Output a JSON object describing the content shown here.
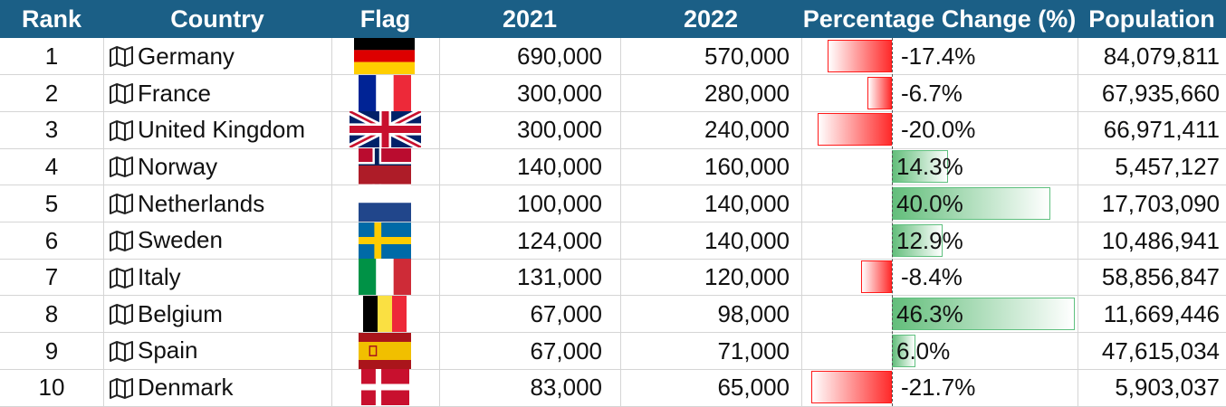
{
  "table": {
    "headers": {
      "rank": "Rank",
      "country": "Country",
      "flag": "Flag",
      "y2021": "2021",
      "y2022": "2022",
      "change": "Percentage Change (%)",
      "population": "Population"
    },
    "rows": [
      {
        "rank": "1",
        "country": "Germany",
        "flag": "germany-flag",
        "y2021": "690,000",
        "y2022": "570,000",
        "change": "-17.4%",
        "change_value": -17.4,
        "population": "84,079,811"
      },
      {
        "rank": "2",
        "country": "France",
        "flag": "france-flag",
        "y2021": "300,000",
        "y2022": "280,000",
        "change": "-6.7%",
        "change_value": -6.7,
        "population": "67,935,660"
      },
      {
        "rank": "3",
        "country": "United Kingdom",
        "flag": "uk-flag",
        "y2021": "300,000",
        "y2022": "240,000",
        "change": "-20.0%",
        "change_value": -20.0,
        "population": "66,971,411"
      },
      {
        "rank": "4",
        "country": "Norway",
        "flag": "norway-flag",
        "y2021": "140,000",
        "y2022": "160,000",
        "change": "14.3%",
        "change_value": 14.3,
        "population": "5,457,127"
      },
      {
        "rank": "5",
        "country": "Netherlands",
        "flag": "netherlands-flag",
        "y2021": "100,000",
        "y2022": "140,000",
        "change": "40.0%",
        "change_value": 40.0,
        "population": "17,703,090"
      },
      {
        "rank": "6",
        "country": "Sweden",
        "flag": "sweden-flag",
        "y2021": "124,000",
        "y2022": "140,000",
        "change": "12.9%",
        "change_value": 12.9,
        "population": "10,486,941"
      },
      {
        "rank": "7",
        "country": "Italy",
        "flag": "italy-flag",
        "y2021": "131,000",
        "y2022": "120,000",
        "change": "-8.4%",
        "change_value": -8.4,
        "population": "58,856,847"
      },
      {
        "rank": "8",
        "country": "Belgium",
        "flag": "belgium-flag",
        "y2021": "67,000",
        "y2022": "98,000",
        "change": "46.3%",
        "change_value": 46.3,
        "population": "11,669,446"
      },
      {
        "rank": "9",
        "country": "Spain",
        "flag": "spain-flag",
        "y2021": "67,000",
        "y2022": "71,000",
        "change": "6.0%",
        "change_value": 6.0,
        "population": "47,615,034"
      },
      {
        "rank": "10",
        "country": "Denmark",
        "flag": "denmark-flag",
        "y2021": "83,000",
        "y2022": "65,000",
        "change": "-21.7%",
        "change_value": -21.7,
        "population": "5,903,037"
      }
    ]
  },
  "chart_data": {
    "type": "table",
    "columns": [
      "Rank",
      "Country",
      "Flag",
      "2021",
      "2022",
      "Percentage Change (%)",
      "Population"
    ],
    "categories": [
      "Germany",
      "France",
      "United Kingdom",
      "Norway",
      "Netherlands",
      "Sweden",
      "Italy",
      "Belgium",
      "Spain",
      "Denmark"
    ],
    "series": [
      {
        "name": "2021",
        "values": [
          690000,
          300000,
          300000,
          140000,
          100000,
          124000,
          131000,
          67000,
          67000,
          83000
        ]
      },
      {
        "name": "2022",
        "values": [
          570000,
          280000,
          240000,
          160000,
          140000,
          140000,
          120000,
          98000,
          71000,
          65000
        ]
      },
      {
        "name": "Percentage Change (%)",
        "values": [
          -17.4,
          -6.7,
          -20.0,
          14.3,
          40.0,
          12.9,
          -8.4,
          46.3,
          6.0,
          -21.7
        ]
      },
      {
        "name": "Population",
        "values": [
          84079811,
          67935660,
          66971411,
          5457127,
          17703090,
          10486941,
          58856847,
          11669446,
          47615034,
          5903037
        ]
      }
    ],
    "databar_colors": {
      "negative": "#ff2b2b",
      "positive": "#63be7b"
    },
    "header_color": "#1b5f86",
    "icon": "map-icon"
  }
}
